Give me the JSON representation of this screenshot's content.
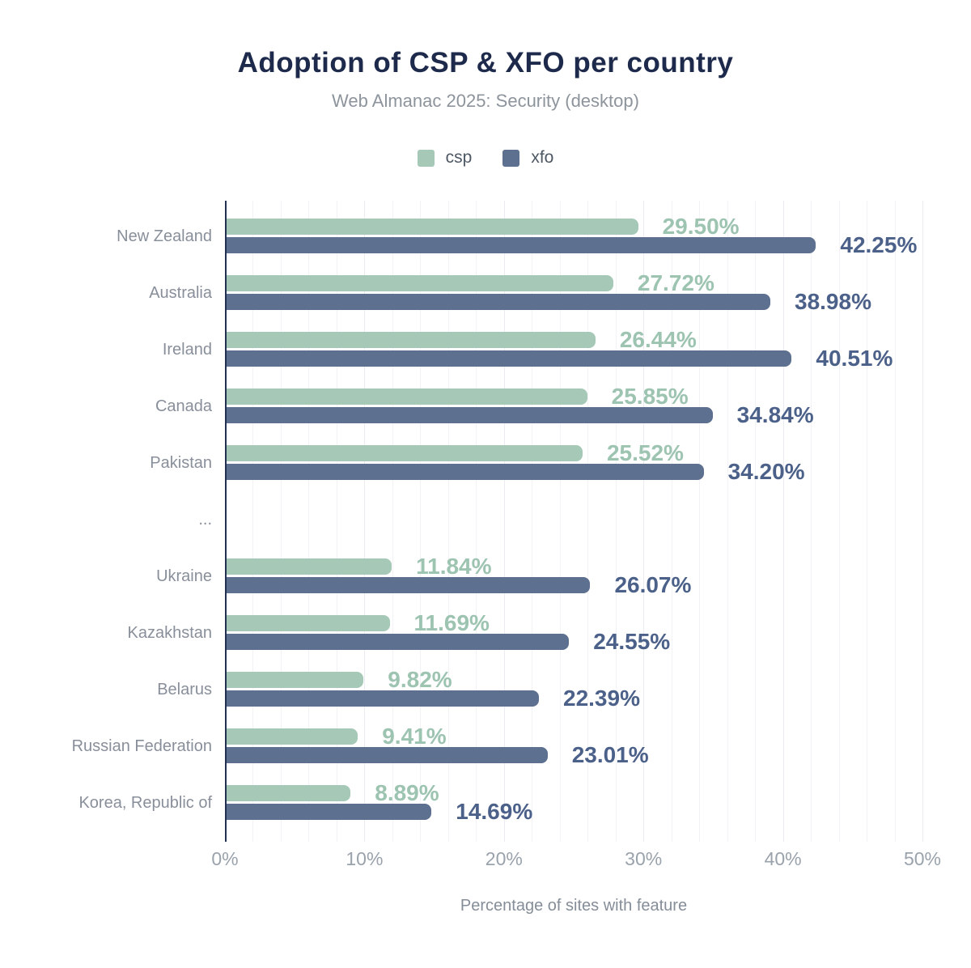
{
  "chart_data": {
    "type": "bar",
    "orientation": "horizontal",
    "title": "Adoption of CSP & XFO per country",
    "subtitle": "Web Almanac 2025: Security (desktop)",
    "xlabel": "Percentage of sites with feature",
    "xlim": [
      0,
      50
    ],
    "x_ticks": [
      "0%",
      "10%",
      "20%",
      "30%",
      "40%",
      "50%"
    ],
    "x_tick_values": [
      0,
      10,
      20,
      30,
      40,
      50
    ],
    "grid": "vertical, minor every 2%",
    "legend_position": "top-center",
    "legend": [
      "csp",
      "xfo"
    ],
    "categories": [
      "New Zealand",
      "Australia",
      "Ireland",
      "Canada",
      "Pakistan",
      "...",
      "Ukraine",
      "Kazakhstan",
      "Belarus",
      "Russian Federation",
      "Korea, Republic of"
    ],
    "series": [
      {
        "name": "csp",
        "color": "#a5c8b7",
        "label_color": "#9dc3b1",
        "values": [
          29.5,
          27.72,
          26.44,
          25.85,
          25.52,
          null,
          11.84,
          11.69,
          9.82,
          9.41,
          8.89
        ],
        "labels": [
          "29.50%",
          "27.72%",
          "26.44%",
          "25.85%",
          "25.52%",
          null,
          "11.84%",
          "11.69%",
          "9.82%",
          "9.41%",
          "8.89%"
        ]
      },
      {
        "name": "xfo",
        "color": "#5e7090",
        "label_color": "#4c6189",
        "values": [
          42.25,
          38.98,
          40.51,
          34.84,
          34.2,
          null,
          26.07,
          24.55,
          22.39,
          23.01,
          14.69
        ],
        "labels": [
          "42.25%",
          "38.98%",
          "40.51%",
          "34.84%",
          "34.20%",
          null,
          "26.07%",
          "24.55%",
          "22.39%",
          "23.01%",
          "14.69%"
        ]
      }
    ],
    "colors": {
      "title": "#1e2a4b",
      "subtitle": "#8d949c",
      "axis_line": "#24304f",
      "category_labels": "#898f9a",
      "tick_labels": "#9aa2ac",
      "axis_title": "#858d98",
      "gridline": "#f2f2f7",
      "background": "#ffffff"
    }
  }
}
